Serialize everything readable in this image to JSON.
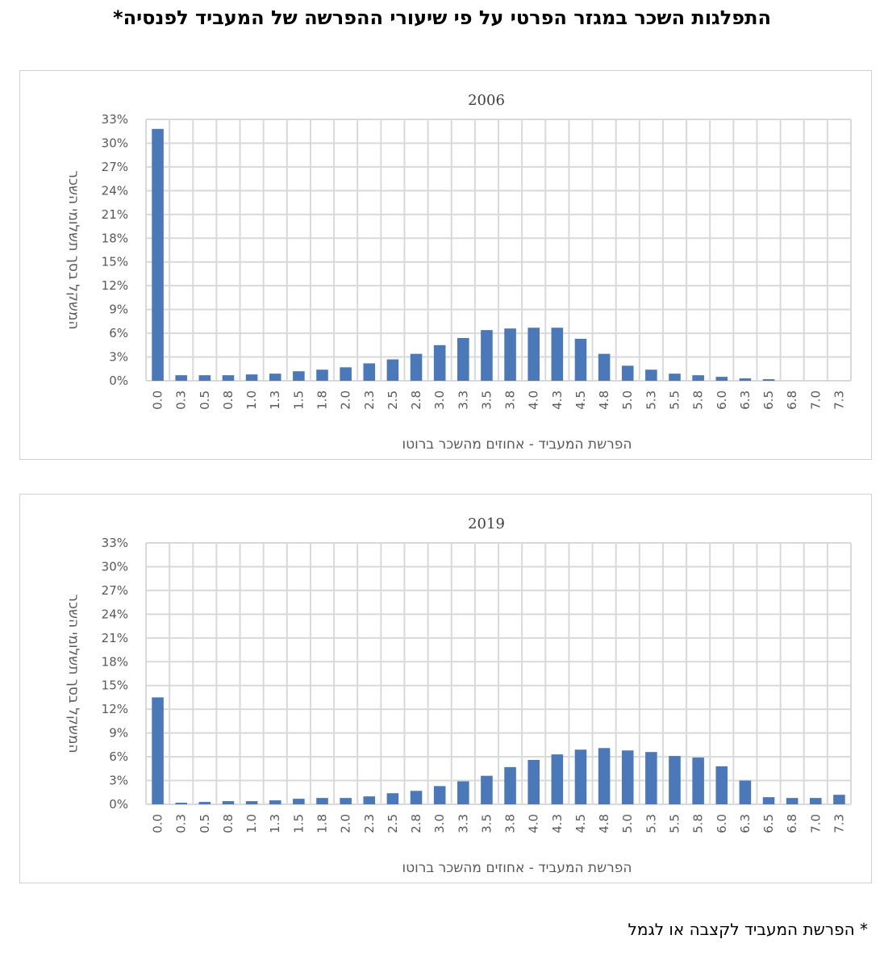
{
  "page_title": "התפלגות השכר במגזר הפרטי על פי שיעורי ההפרשה של המעביד לפנסיה*",
  "footnote": "* הפרשת המעביד לקצבה או לגמל",
  "colors": {
    "bar": "#4a78b8",
    "grid": "#d9d9d9",
    "axis_text": "#595959"
  },
  "chart_data": [
    {
      "type": "bar",
      "title": "2006",
      "xlabel": "הפרשת המעביד - אחוזים מהשכר ברוטו",
      "ylabel": "המשקל בסך תשלומי השכר",
      "categories": [
        "0.0",
        "0.3",
        "0.5",
        "0.8",
        "1.0",
        "1.3",
        "1.5",
        "1.8",
        "2.0",
        "2.3",
        "2.5",
        "2.8",
        "3.0",
        "3.3",
        "3.5",
        "3.8",
        "4.0",
        "4.3",
        "4.5",
        "4.8",
        "5.0",
        "5.3",
        "5.5",
        "5.8",
        "6.0",
        "6.3",
        "6.5",
        "6.8",
        "7.0",
        "7.3"
      ],
      "values": [
        31.8,
        0.7,
        0.7,
        0.7,
        0.8,
        0.9,
        1.2,
        1.4,
        1.7,
        2.2,
        2.7,
        3.4,
        4.5,
        5.4,
        6.4,
        6.6,
        6.7,
        6.7,
        5.3,
        3.4,
        1.9,
        1.4,
        0.9,
        0.7,
        0.5,
        0.3,
        0.2,
        0.0,
        0.0,
        0.0
      ],
      "ylim": [
        0,
        33
      ],
      "yticks": [
        "0%",
        "3%",
        "6%",
        "9%",
        "12%",
        "15%",
        "18%",
        "21%",
        "24%",
        "27%",
        "30%",
        "33%"
      ],
      "grid": true,
      "legend": "none"
    },
    {
      "type": "bar",
      "title": "2019",
      "xlabel": "הפרשת המעביד - אחוזים מהשכר ברוטו",
      "ylabel": "המשקל בסך תשלומי השכר",
      "categories": [
        "0.0",
        "0.3",
        "0.5",
        "0.8",
        "1.0",
        "1.3",
        "1.5",
        "1.8",
        "2.0",
        "2.3",
        "2.5",
        "2.8",
        "3.0",
        "3.3",
        "3.5",
        "3.8",
        "4.0",
        "4.3",
        "4.5",
        "4.8",
        "5.0",
        "5.3",
        "5.5",
        "5.8",
        "6.0",
        "6.3",
        "6.5",
        "6.8",
        "7.0",
        "7.3"
      ],
      "values": [
        13.5,
        0.2,
        0.3,
        0.4,
        0.4,
        0.5,
        0.7,
        0.8,
        0.8,
        1.0,
        1.4,
        1.7,
        2.3,
        2.9,
        3.6,
        4.7,
        5.6,
        6.3,
        6.9,
        7.1,
        6.8,
        6.6,
        6.1,
        5.9,
        4.8,
        3.0,
        0.9,
        0.8,
        0.8,
        1.2
      ],
      "ylim": [
        0,
        33
      ],
      "yticks": [
        "0%",
        "3%",
        "6%",
        "9%",
        "12%",
        "15%",
        "18%",
        "21%",
        "24%",
        "27%",
        "30%",
        "33%"
      ],
      "grid": true,
      "legend": "none"
    }
  ]
}
